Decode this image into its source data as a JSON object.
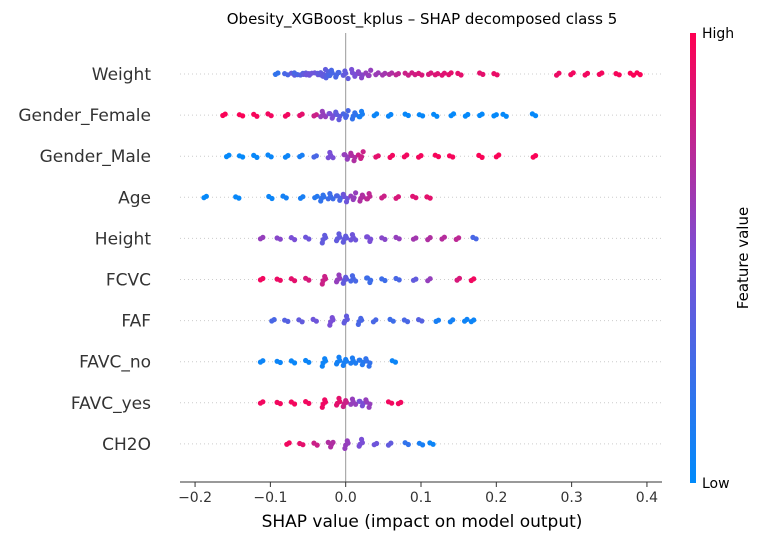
{
  "chart_data": {
    "type": "scatter",
    "subtype": "shap-beeswarm",
    "title": "Obesity_XGBoost_kplus – SHAP decomposed class 5",
    "xlabel": "SHAP value (impact on model output)",
    "xlim": [
      -0.22,
      0.42
    ],
    "xticks": [
      -0.2,
      -0.1,
      0.0,
      0.1,
      0.2,
      0.3,
      0.4
    ],
    "xtick_labels": [
      "−0.2",
      "−0.1",
      "0.0",
      "0.1",
      "0.2",
      "0.3",
      "0.4"
    ],
    "colorbar": {
      "label": "Feature value",
      "high_label": "High",
      "low_label": "Low",
      "high_color": "#ff0052",
      "low_color": "#008bfb"
    },
    "grid": "dotted horizontal guide per feature",
    "features": [
      {
        "name": "Weight",
        "points": [
          [
            -0.09,
            0.2
          ],
          [
            -0.08,
            0.3
          ],
          [
            -0.07,
            0.4
          ],
          [
            -0.065,
            0.3
          ],
          [
            -0.06,
            0.35
          ],
          [
            -0.055,
            0.4
          ],
          [
            -0.05,
            0.45
          ],
          [
            -0.045,
            0.45
          ],
          [
            -0.04,
            0.45
          ],
          [
            -0.035,
            0.4
          ],
          [
            -0.03,
            0.4
          ],
          [
            -0.025,
            0.35
          ],
          [
            -0.02,
            0.3
          ],
          [
            -0.01,
            0.3
          ],
          [
            0.0,
            0.4
          ],
          [
            0.01,
            0.5
          ],
          [
            0.02,
            0.55
          ],
          [
            0.03,
            0.6
          ],
          [
            0.04,
            0.62
          ],
          [
            0.05,
            0.65
          ],
          [
            0.06,
            0.7
          ],
          [
            0.07,
            0.75
          ],
          [
            0.08,
            0.8
          ],
          [
            0.09,
            0.82
          ],
          [
            0.1,
            0.85
          ],
          [
            0.11,
            0.85
          ],
          [
            0.12,
            0.87
          ],
          [
            0.13,
            0.88
          ],
          [
            0.14,
            0.9
          ],
          [
            0.15,
            0.9
          ],
          [
            0.18,
            0.9
          ],
          [
            0.2,
            0.92
          ],
          [
            0.28,
            0.93
          ],
          [
            0.3,
            0.95
          ],
          [
            0.32,
            0.95
          ],
          [
            0.34,
            0.96
          ],
          [
            0.36,
            0.97
          ],
          [
            0.38,
            0.98
          ],
          [
            0.39,
            0.98
          ]
        ]
      },
      {
        "name": "Gender_Female",
        "points": [
          [
            -0.16,
            0.98
          ],
          [
            -0.14,
            0.98
          ],
          [
            -0.12,
            0.97
          ],
          [
            -0.1,
            0.95
          ],
          [
            -0.08,
            0.95
          ],
          [
            -0.06,
            0.9
          ],
          [
            -0.04,
            0.8
          ],
          [
            -0.03,
            0.6
          ],
          [
            -0.02,
            0.5
          ],
          [
            -0.01,
            0.4
          ],
          [
            0.0,
            0.3
          ],
          [
            0.01,
            0.2
          ],
          [
            0.02,
            0.1
          ],
          [
            0.04,
            0.05
          ],
          [
            0.06,
            0.04
          ],
          [
            0.08,
            0.03
          ],
          [
            0.1,
            0.03
          ],
          [
            0.12,
            0.02
          ],
          [
            0.14,
            0.02
          ],
          [
            0.16,
            0.02
          ],
          [
            0.18,
            0.02
          ],
          [
            0.2,
            0.02
          ],
          [
            0.21,
            0.02
          ],
          [
            0.25,
            0.02
          ]
        ]
      },
      {
        "name": "Gender_Male",
        "points": [
          [
            -0.155,
            0.02
          ],
          [
            -0.14,
            0.02
          ],
          [
            -0.12,
            0.03
          ],
          [
            -0.1,
            0.04
          ],
          [
            -0.08,
            0.05
          ],
          [
            -0.06,
            0.1
          ],
          [
            -0.04,
            0.3
          ],
          [
            -0.02,
            0.5
          ],
          [
            0.0,
            0.6
          ],
          [
            0.01,
            0.7
          ],
          [
            0.02,
            0.8
          ],
          [
            0.04,
            0.9
          ],
          [
            0.06,
            0.95
          ],
          [
            0.08,
            0.95
          ],
          [
            0.1,
            0.96
          ],
          [
            0.12,
            0.97
          ],
          [
            0.14,
            0.97
          ],
          [
            0.18,
            0.98
          ],
          [
            0.2,
            0.98
          ],
          [
            0.25,
            0.98
          ]
        ]
      },
      {
        "name": "Age",
        "points": [
          [
            -0.185,
            0.02
          ],
          [
            -0.145,
            0.03
          ],
          [
            -0.1,
            0.05
          ],
          [
            -0.08,
            0.08
          ],
          [
            -0.06,
            0.1
          ],
          [
            -0.04,
            0.15
          ],
          [
            -0.03,
            0.2
          ],
          [
            -0.02,
            0.25
          ],
          [
            -0.01,
            0.3
          ],
          [
            0.0,
            0.45
          ],
          [
            0.01,
            0.6
          ],
          [
            0.02,
            0.7
          ],
          [
            0.03,
            0.75
          ],
          [
            0.05,
            0.8
          ],
          [
            0.07,
            0.85
          ],
          [
            0.09,
            0.88
          ],
          [
            0.11,
            0.9
          ]
        ]
      },
      {
        "name": "Height",
        "points": [
          [
            -0.11,
            0.6
          ],
          [
            -0.09,
            0.55
          ],
          [
            -0.07,
            0.5
          ],
          [
            -0.05,
            0.45
          ],
          [
            -0.03,
            0.4
          ],
          [
            -0.01,
            0.4
          ],
          [
            0.0,
            0.4
          ],
          [
            0.01,
            0.45
          ],
          [
            0.03,
            0.5
          ],
          [
            0.05,
            0.55
          ],
          [
            0.07,
            0.6
          ],
          [
            0.09,
            0.65
          ],
          [
            0.11,
            0.7
          ],
          [
            0.13,
            0.72
          ],
          [
            0.15,
            0.75
          ],
          [
            0.17,
            0.3
          ]
        ]
      },
      {
        "name": "FCVC",
        "points": [
          [
            -0.11,
            0.95
          ],
          [
            -0.09,
            0.93
          ],
          [
            -0.07,
            0.9
          ],
          [
            -0.05,
            0.85
          ],
          [
            -0.03,
            0.8
          ],
          [
            -0.01,
            0.6
          ],
          [
            0.0,
            0.4
          ],
          [
            0.01,
            0.3
          ],
          [
            0.03,
            0.25
          ],
          [
            0.05,
            0.25
          ],
          [
            0.07,
            0.3
          ],
          [
            0.09,
            0.4
          ],
          [
            0.11,
            0.6
          ],
          [
            0.15,
            0.85
          ],
          [
            0.17,
            0.95
          ]
        ]
      },
      {
        "name": "FAF",
        "points": [
          [
            -0.095,
            0.3
          ],
          [
            -0.08,
            0.35
          ],
          [
            -0.06,
            0.4
          ],
          [
            -0.04,
            0.45
          ],
          [
            -0.02,
            0.5
          ],
          [
            0.0,
            0.4
          ],
          [
            0.02,
            0.3
          ],
          [
            0.04,
            0.3
          ],
          [
            0.06,
            0.25
          ],
          [
            0.08,
            0.3
          ],
          [
            0.1,
            0.35
          ],
          [
            0.12,
            0.1
          ],
          [
            0.14,
            0.08
          ],
          [
            0.16,
            0.06
          ],
          [
            0.17,
            0.05
          ]
        ]
      },
      {
        "name": "FAVC_no",
        "points": [
          [
            -0.11,
            0.05
          ],
          [
            -0.09,
            0.05
          ],
          [
            -0.07,
            0.04
          ],
          [
            -0.05,
            0.05
          ],
          [
            -0.03,
            0.06
          ],
          [
            -0.01,
            0.08
          ],
          [
            0.0,
            0.1
          ],
          [
            0.01,
            0.12
          ],
          [
            0.02,
            0.15
          ],
          [
            0.03,
            0.2
          ],
          [
            0.065,
            0.05
          ]
        ]
      },
      {
        "name": "FAVC_yes",
        "points": [
          [
            -0.11,
            0.95
          ],
          [
            -0.09,
            0.95
          ],
          [
            -0.07,
            0.96
          ],
          [
            -0.05,
            0.95
          ],
          [
            -0.03,
            0.94
          ],
          [
            -0.01,
            0.9
          ],
          [
            0.0,
            0.8
          ],
          [
            0.01,
            0.6
          ],
          [
            0.02,
            0.5
          ],
          [
            0.03,
            0.6
          ],
          [
            0.06,
            0.95
          ],
          [
            0.07,
            0.95
          ]
        ]
      },
      {
        "name": "CH2O",
        "points": [
          [
            -0.075,
            0.95
          ],
          [
            -0.06,
            0.9
          ],
          [
            -0.04,
            0.8
          ],
          [
            -0.02,
            0.7
          ],
          [
            0.0,
            0.6
          ],
          [
            0.02,
            0.5
          ],
          [
            0.04,
            0.45
          ],
          [
            0.06,
            0.4
          ],
          [
            0.08,
            0.2
          ],
          [
            0.1,
            0.1
          ],
          [
            0.115,
            0.05
          ]
        ]
      }
    ]
  }
}
